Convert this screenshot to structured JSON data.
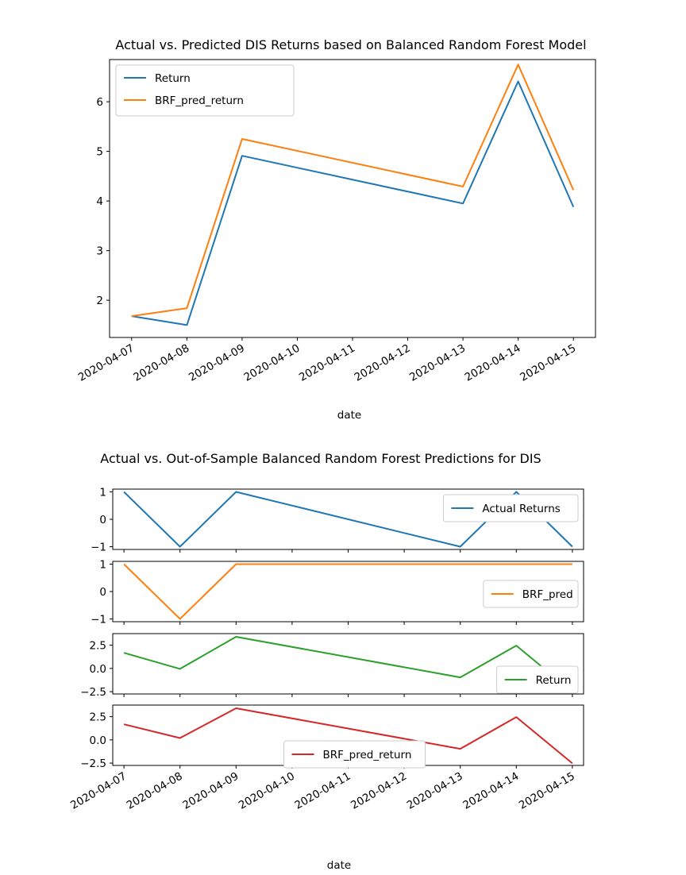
{
  "chart_data": [
    {
      "type": "line",
      "title": "Actual vs. Predicted DIS Returns based on Balanced Random Forest Model",
      "xlabel": "date",
      "ylabel": "",
      "x_ticks": [
        "2020-04-07",
        "2020-04-08",
        "2020-04-09",
        "2020-04-10",
        "2020-04-11",
        "2020-04-12",
        "2020-04-13",
        "2020-04-14",
        "2020-04-15"
      ],
      "ylim": [
        1.25,
        6.85
      ],
      "y_ticks": [
        2,
        3,
        4,
        5,
        6
      ],
      "grid": false,
      "legend_position": "upper left",
      "series": [
        {
          "name": "Return",
          "color": "#1f77b4",
          "x": [
            "2020-04-07",
            "2020-04-08",
            "2020-04-09",
            "2020-04-13",
            "2020-04-14",
            "2020-04-15"
          ],
          "values": [
            1.68,
            1.5,
            4.91,
            3.95,
            6.41,
            3.88
          ]
        },
        {
          "name": "BRF_pred_return",
          "color": "#ff7f0e",
          "x": [
            "2020-04-07",
            "2020-04-08",
            "2020-04-09",
            "2020-04-13",
            "2020-04-14",
            "2020-04-15"
          ],
          "values": [
            1.68,
            1.84,
            5.25,
            4.29,
            6.75,
            4.22
          ]
        }
      ]
    },
    {
      "type": "line",
      "title": "Actual vs. Out-of-Sample Balanced Random Forest Predictions for DIS",
      "xlabel": "date",
      "x_ticks": [
        "2020-04-07",
        "2020-04-08",
        "2020-04-09",
        "2020-04-10",
        "2020-04-11",
        "2020-04-12",
        "2020-04-13",
        "2020-04-14",
        "2020-04-15"
      ],
      "grid": false,
      "subplots": [
        {
          "series_name": "Actual Returns",
          "color": "#1f77b4",
          "ylim": [
            -1.1,
            1.1
          ],
          "y_ticks": [
            {
              "v": 1,
              "label": "1"
            },
            {
              "v": 0,
              "label": "0"
            },
            {
              "v": -1,
              "label": "−1"
            }
          ],
          "legend_position": "upper right",
          "x": [
            "2020-04-07",
            "2020-04-08",
            "2020-04-09",
            "2020-04-13",
            "2020-04-14",
            "2020-04-15"
          ],
          "values": [
            1,
            -1,
            1,
            -1,
            1,
            -1
          ]
        },
        {
          "series_name": "BRF_pred",
          "color": "#ff7f0e",
          "ylim": [
            -1.1,
            1.1
          ],
          "y_ticks": [
            {
              "v": 1,
              "label": "1"
            },
            {
              "v": 0,
              "label": "0"
            },
            {
              "v": -1,
              "label": "−1"
            }
          ],
          "legend_position": "center right",
          "x": [
            "2020-04-07",
            "2020-04-08",
            "2020-04-09",
            "2020-04-13",
            "2020-04-14",
            "2020-04-15"
          ],
          "values": [
            1,
            -1,
            1,
            1,
            1,
            1
          ]
        },
        {
          "series_name": "Return",
          "color": "#2ca02c",
          "ylim": [
            -2.75,
            3.75
          ],
          "y_ticks": [
            {
              "v": 2.5,
              "label": "2.5"
            },
            {
              "v": 0,
              "label": "0.0"
            },
            {
              "v": -2.5,
              "label": "−2.5"
            }
          ],
          "legend_position": "lower right",
          "x": [
            "2020-04-07",
            "2020-04-08",
            "2020-04-09",
            "2020-04-13",
            "2020-04-14",
            "2020-04-15"
          ],
          "values": [
            1.68,
            -0.05,
            3.41,
            -0.96,
            2.46,
            -2.53
          ]
        },
        {
          "series_name": "BRF_pred_return",
          "color": "#d62728",
          "ylim": [
            -2.75,
            3.75
          ],
          "y_ticks": [
            {
              "v": 2.5,
              "label": "2.5"
            },
            {
              "v": 0,
              "label": "0.0"
            },
            {
              "v": -2.5,
              "label": "−2.5"
            }
          ],
          "legend_position": "lower center",
          "x": [
            "2020-04-07",
            "2020-04-08",
            "2020-04-09",
            "2020-04-13",
            "2020-04-14",
            "2020-04-15"
          ],
          "values": [
            1.68,
            0.2,
            3.41,
            -0.96,
            2.46,
            -2.53
          ]
        }
      ]
    }
  ]
}
